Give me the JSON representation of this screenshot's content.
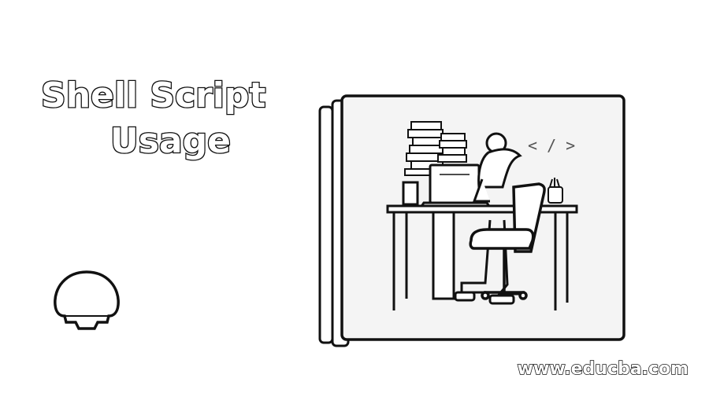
{
  "title": {
    "line1": "Shell Script",
    "line2": "Usage"
  },
  "illustration": {
    "code_symbol": "< / >"
  },
  "logo": {
    "icon": "shell-icon"
  },
  "watermark": "www.educba.com",
  "colors": {
    "ink": "#111111",
    "background": "#ffffff",
    "panel": "#f4f4f4"
  }
}
